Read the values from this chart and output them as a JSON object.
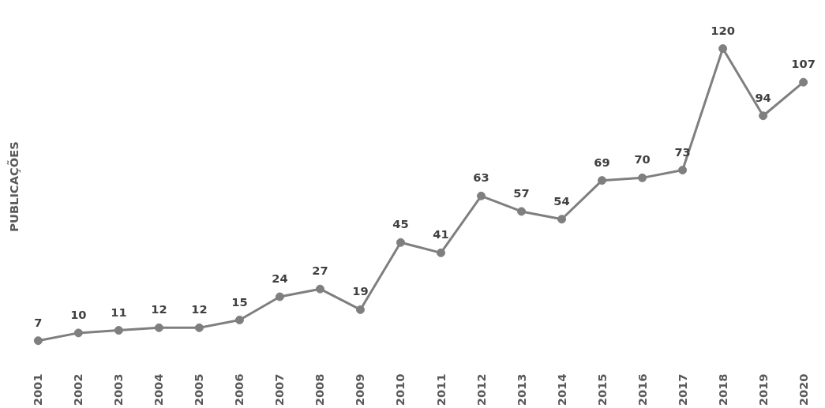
{
  "chart_data": {
    "type": "line",
    "ylabel": "PUBLICAÇÕES",
    "categories": [
      "2001",
      "2002",
      "2003",
      "2004",
      "2005",
      "2006",
      "2007",
      "2008",
      "2009",
      "2010",
      "2011",
      "2012",
      "2013",
      "2014",
      "2015",
      "2016",
      "2017",
      "2018",
      "2019",
      "2020"
    ],
    "series": [
      {
        "color": "#7f7f7f",
        "values": [
          7,
          10,
          11,
          12,
          12,
          15,
          24,
          27,
          19,
          45,
          41,
          63,
          57,
          54,
          69,
          70,
          73,
          120,
          94,
          107
        ]
      }
    ],
    "data_labels": true,
    "marker": "circle",
    "line_style": "solid"
  }
}
